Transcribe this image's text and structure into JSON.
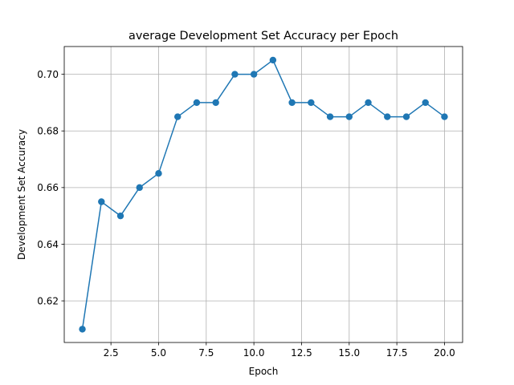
{
  "chart_data": {
    "type": "line",
    "title": "average Development Set Accuracy per Epoch",
    "xlabel": "Epoch",
    "ylabel": "Development Set Accuracy",
    "xlim": [
      0.05,
      20.95
    ],
    "ylim": [
      0.6053,
      0.7098
    ],
    "xticks": [
      2.5,
      5.0,
      7.5,
      10.0,
      12.5,
      15.0,
      17.5,
      20.0
    ],
    "xtick_labels": [
      "2.5",
      "5.0",
      "7.5",
      "10.0",
      "12.5",
      "15.0",
      "17.5",
      "20.0"
    ],
    "yticks": [
      0.62,
      0.64,
      0.66,
      0.68,
      0.7
    ],
    "ytick_labels": [
      "0.62",
      "0.64",
      "0.66",
      "0.68",
      "0.70"
    ],
    "grid": true,
    "marker": "circle",
    "color": "#1f77b4",
    "series": [
      {
        "x": [
          1,
          2,
          3,
          4,
          5,
          6,
          7,
          8,
          9,
          10,
          11,
          12,
          13,
          14,
          15,
          16,
          17,
          18,
          19,
          20
        ],
        "y": [
          0.61,
          0.655,
          0.65,
          0.66,
          0.665,
          0.685,
          0.69,
          0.69,
          0.7,
          0.7,
          0.705,
          0.69,
          0.69,
          0.685,
          0.685,
          0.69,
          0.685,
          0.685,
          0.69,
          0.685
        ]
      }
    ]
  }
}
